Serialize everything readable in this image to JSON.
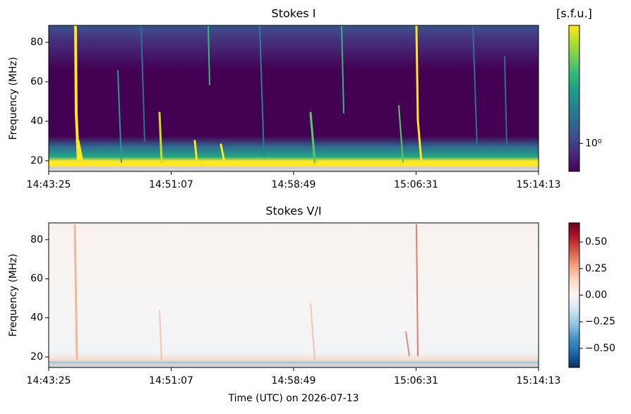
{
  "chart_data": [
    {
      "type": "spectrogram",
      "title": "Stokes I",
      "ylabel": "Frequency (MHz)",
      "xlim": [
        "14:43:25",
        "15:14:13"
      ],
      "xticks": [
        "14:43:25",
        "14:51:07",
        "14:58:49",
        "15:06:31",
        "15:14:13"
      ],
      "ylim": [
        14.6,
        88.6
      ],
      "yticks": [
        20,
        40,
        60,
        80
      ],
      "colormap": "viridis",
      "colorbar_label": "[s.f.u.]",
      "colorbar_scale": "log",
      "clim": [
        0.7,
        4.5
      ],
      "colorbar_ticks": [
        {
          "value": 1,
          "label": "10⁰"
        }
      ]
    },
    {
      "type": "spectrogram",
      "title": "Stokes V/I",
      "ylabel": "Frequency (MHz)",
      "xlabel": "Time (UTC) on 2026-07-13",
      "xlim": [
        "14:43:25",
        "15:14:13"
      ],
      "xticks": [
        "14:43:25",
        "14:51:07",
        "14:58:49",
        "15:06:31",
        "15:14:13"
      ],
      "ylim": [
        14.6,
        88.6
      ],
      "yticks": [
        20,
        40,
        60,
        80
      ],
      "colormap": "RdBu_r",
      "colorbar_scale": "linear",
      "clim": [
        -0.68,
        0.68
      ],
      "colorbar_ticks": [
        {
          "value": -0.5,
          "label": "−0.50"
        },
        {
          "value": -0.25,
          "label": "−0.25"
        },
        {
          "value": 0,
          "label": "0.00"
        },
        {
          "value": 0.25,
          "label": "0.25"
        },
        {
          "value": 0.5,
          "label": "0.50"
        }
      ]
    }
  ]
}
